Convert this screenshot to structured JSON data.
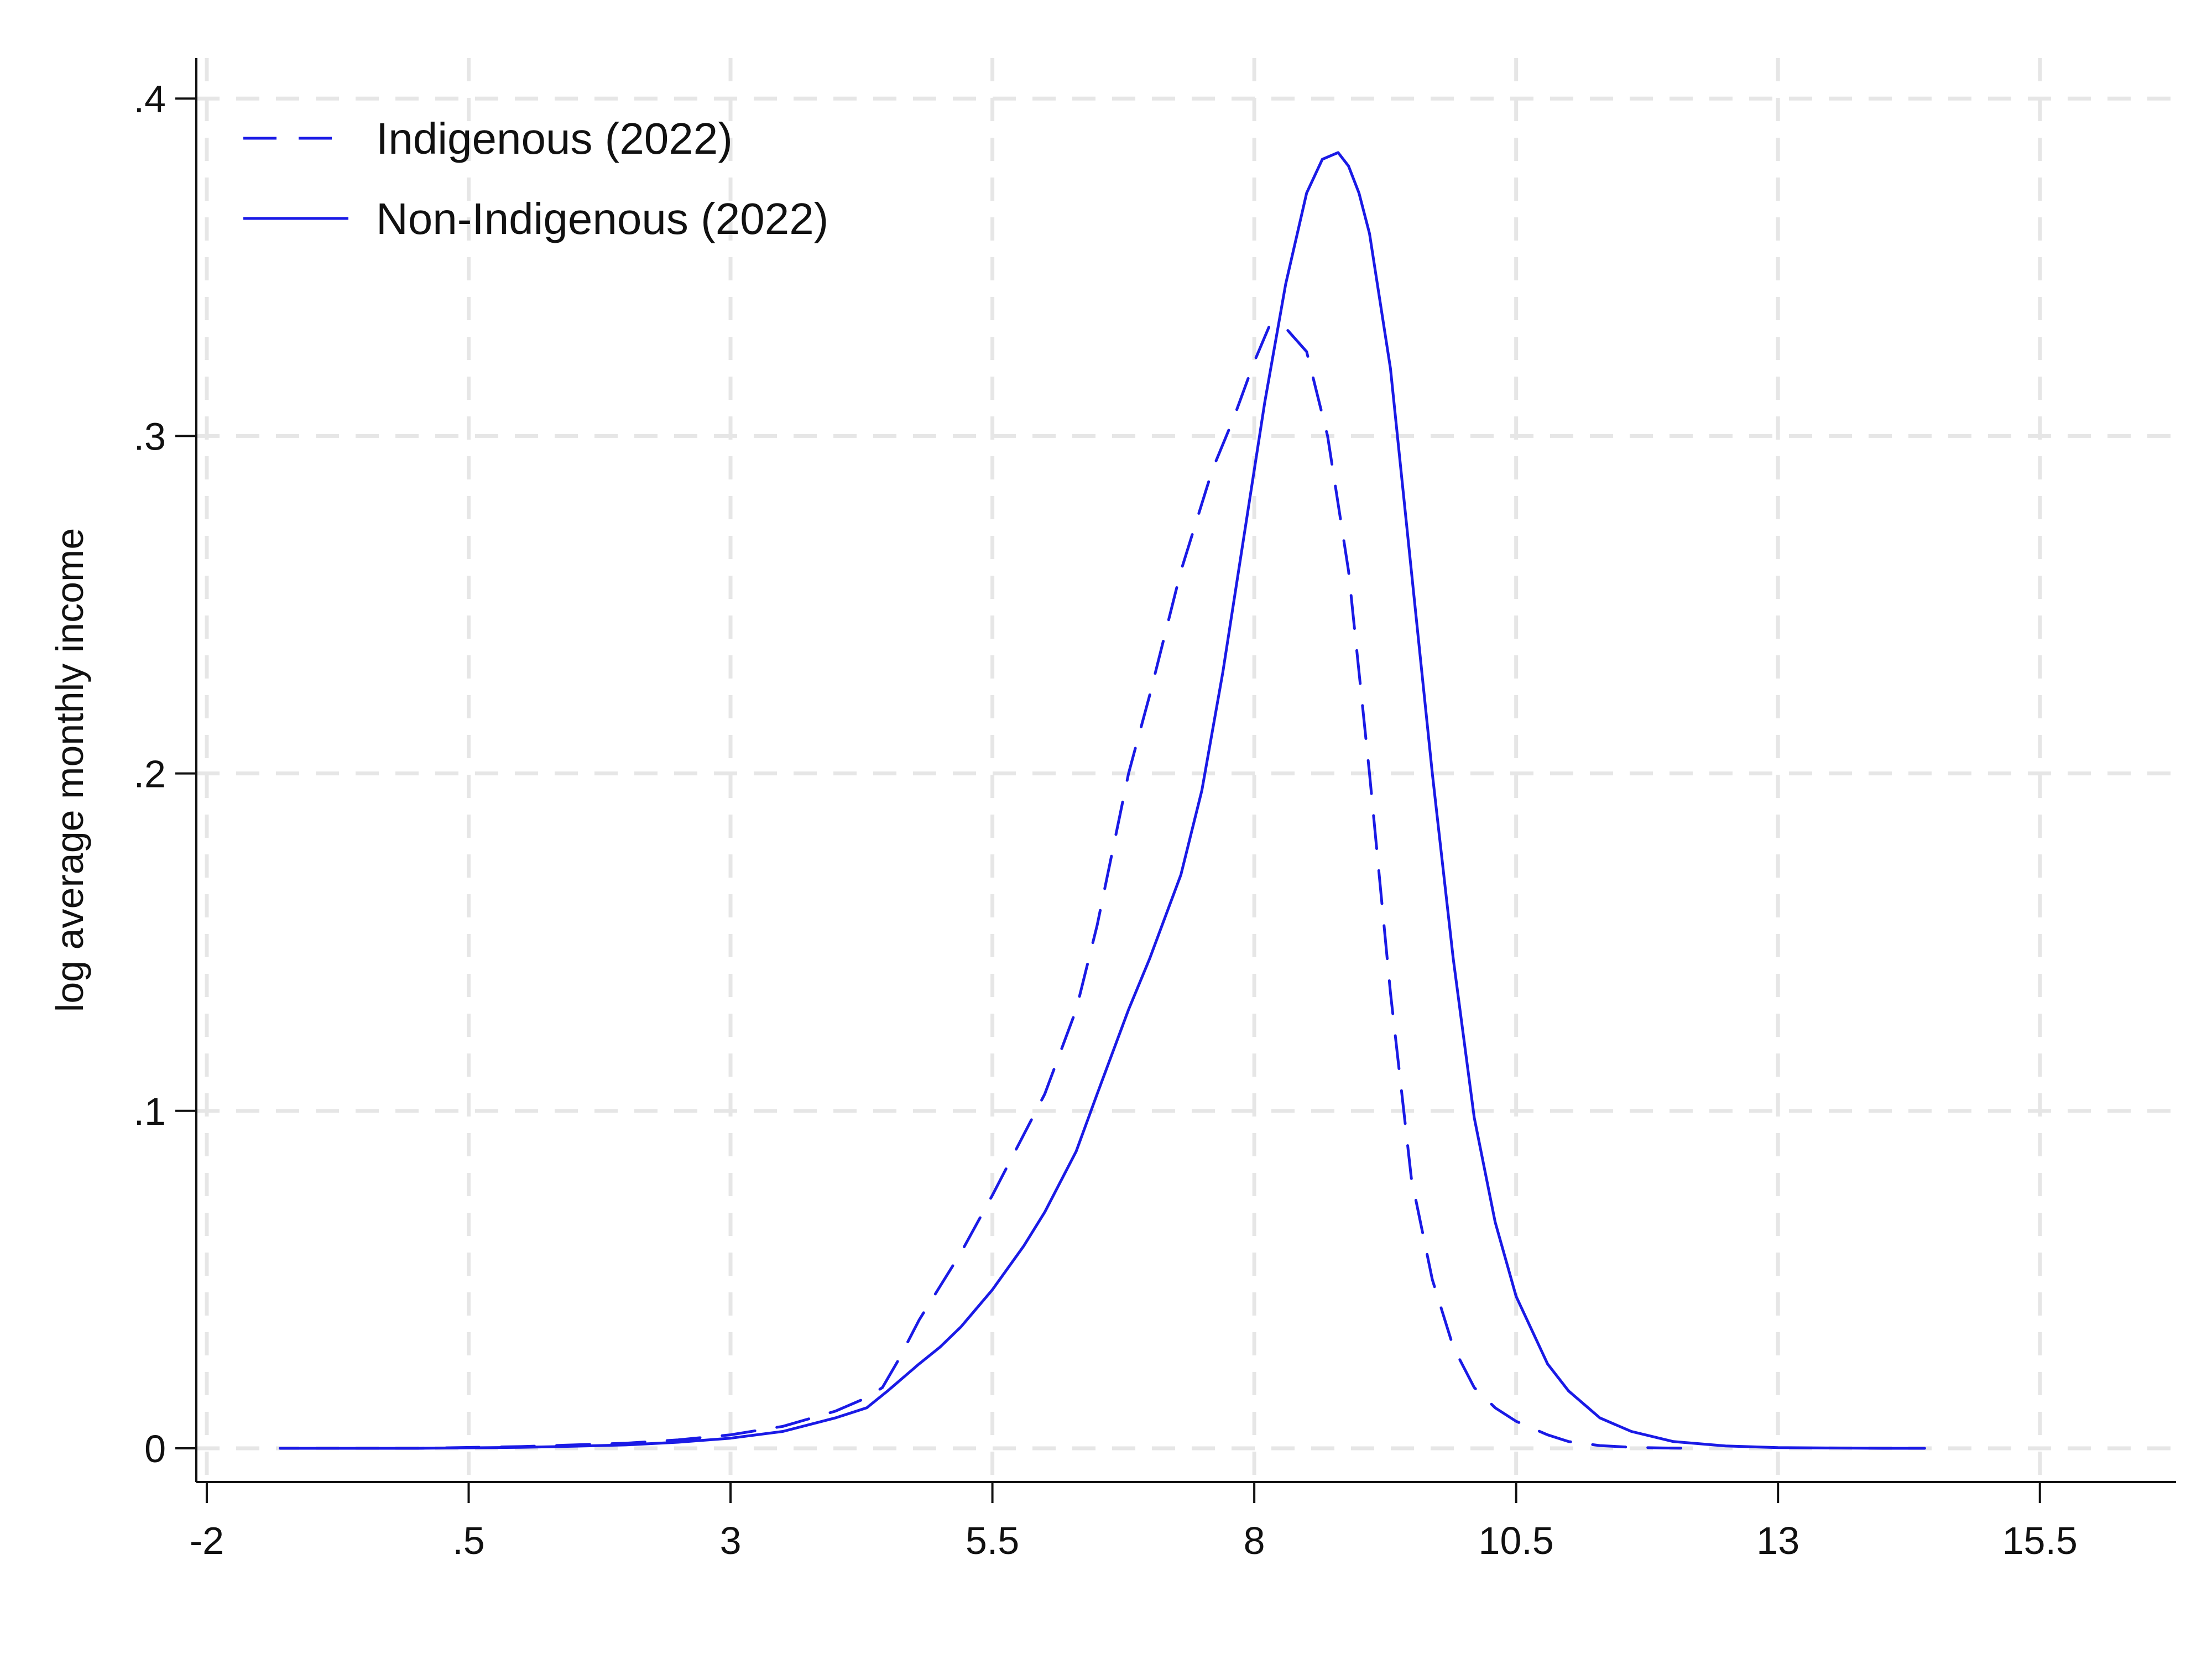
{
  "chart_data": {
    "type": "line",
    "title": "",
    "xlabel": "",
    "ylabel": "log average monthly income",
    "xlim": [
      -2.1,
      16.8
    ],
    "ylim": [
      -0.01,
      0.412
    ],
    "x_ticks": [
      -2,
      0.5,
      3,
      5.5,
      8,
      10.5,
      13,
      15.5
    ],
    "x_tick_labels": [
      "-2",
      ".5",
      "3",
      "5.5",
      "8",
      "10.5",
      "13",
      "15.5"
    ],
    "y_ticks": [
      0,
      0.1,
      0.2,
      0.3,
      0.4
    ],
    "y_tick_labels": [
      "0",
      ".1",
      ".2",
      ".3",
      ".4"
    ],
    "grid": true,
    "legend_position": "top-left",
    "colors": {
      "series": "#1a1ae6",
      "grid": "#e6e6e6",
      "axis": "#111111"
    },
    "series": [
      {
        "name": "Indigenous (2022)",
        "style": "dashed",
        "x": [
          -1.3,
          0,
          1,
          1.5,
          2,
          2.5,
          3,
          3.5,
          4,
          4.3,
          4.45,
          4.6,
          4.8,
          5,
          5.2,
          5.5,
          5.8,
          6,
          6.3,
          6.5,
          6.8,
          7,
          7.3,
          7.6,
          7.8,
          8,
          8.15,
          8.3,
          8.5,
          8.7,
          8.9,
          9.1,
          9.3,
          9.5,
          9.7,
          9.9,
          10.1,
          10.3,
          10.5,
          10.8,
          11,
          11.3,
          11.6,
          11.9,
          12.2
        ],
        "y": [
          0,
          0,
          0.0005,
          0.001,
          0.0015,
          0.0025,
          0.004,
          0.0065,
          0.011,
          0.015,
          0.018,
          0.026,
          0.038,
          0.048,
          0.058,
          0.075,
          0.093,
          0.105,
          0.13,
          0.155,
          0.2,
          0.223,
          0.26,
          0.29,
          0.305,
          0.322,
          0.333,
          0.332,
          0.325,
          0.3,
          0.26,
          0.2,
          0.135,
          0.08,
          0.05,
          0.03,
          0.018,
          0.012,
          0.008,
          0.004,
          0.002,
          0.0008,
          0.0003,
          0.0001,
          0
        ]
      },
      {
        "name": "Non-Indigenous (2022)",
        "style": "solid",
        "x": [
          -1.3,
          0,
          1,
          1.5,
          2,
          2.5,
          3,
          3.5,
          4,
          4.3,
          4.5,
          4.8,
          5,
          5.2,
          5.5,
          5.8,
          6,
          6.3,
          6.5,
          6.8,
          7,
          7.3,
          7.5,
          7.7,
          7.9,
          8.1,
          8.3,
          8.5,
          8.65,
          8.8,
          8.9,
          9,
          9.1,
          9.3,
          9.5,
          9.7,
          9.9,
          10.1,
          10.3,
          10.5,
          10.8,
          11,
          11.3,
          11.6,
          12,
          12.5,
          13,
          13.5,
          14,
          14.4
        ],
        "y": [
          0,
          0,
          0.0003,
          0.0006,
          0.001,
          0.0018,
          0.003,
          0.005,
          0.009,
          0.012,
          0.017,
          0.025,
          0.03,
          0.036,
          0.047,
          0.06,
          0.07,
          0.088,
          0.105,
          0.13,
          0.145,
          0.17,
          0.195,
          0.23,
          0.27,
          0.31,
          0.345,
          0.372,
          0.382,
          0.384,
          0.38,
          0.372,
          0.36,
          0.32,
          0.26,
          0.2,
          0.145,
          0.098,
          0.067,
          0.045,
          0.025,
          0.017,
          0.009,
          0.005,
          0.002,
          0.0007,
          0.0002,
          0.0001,
          0,
          0
        ]
      }
    ]
  }
}
